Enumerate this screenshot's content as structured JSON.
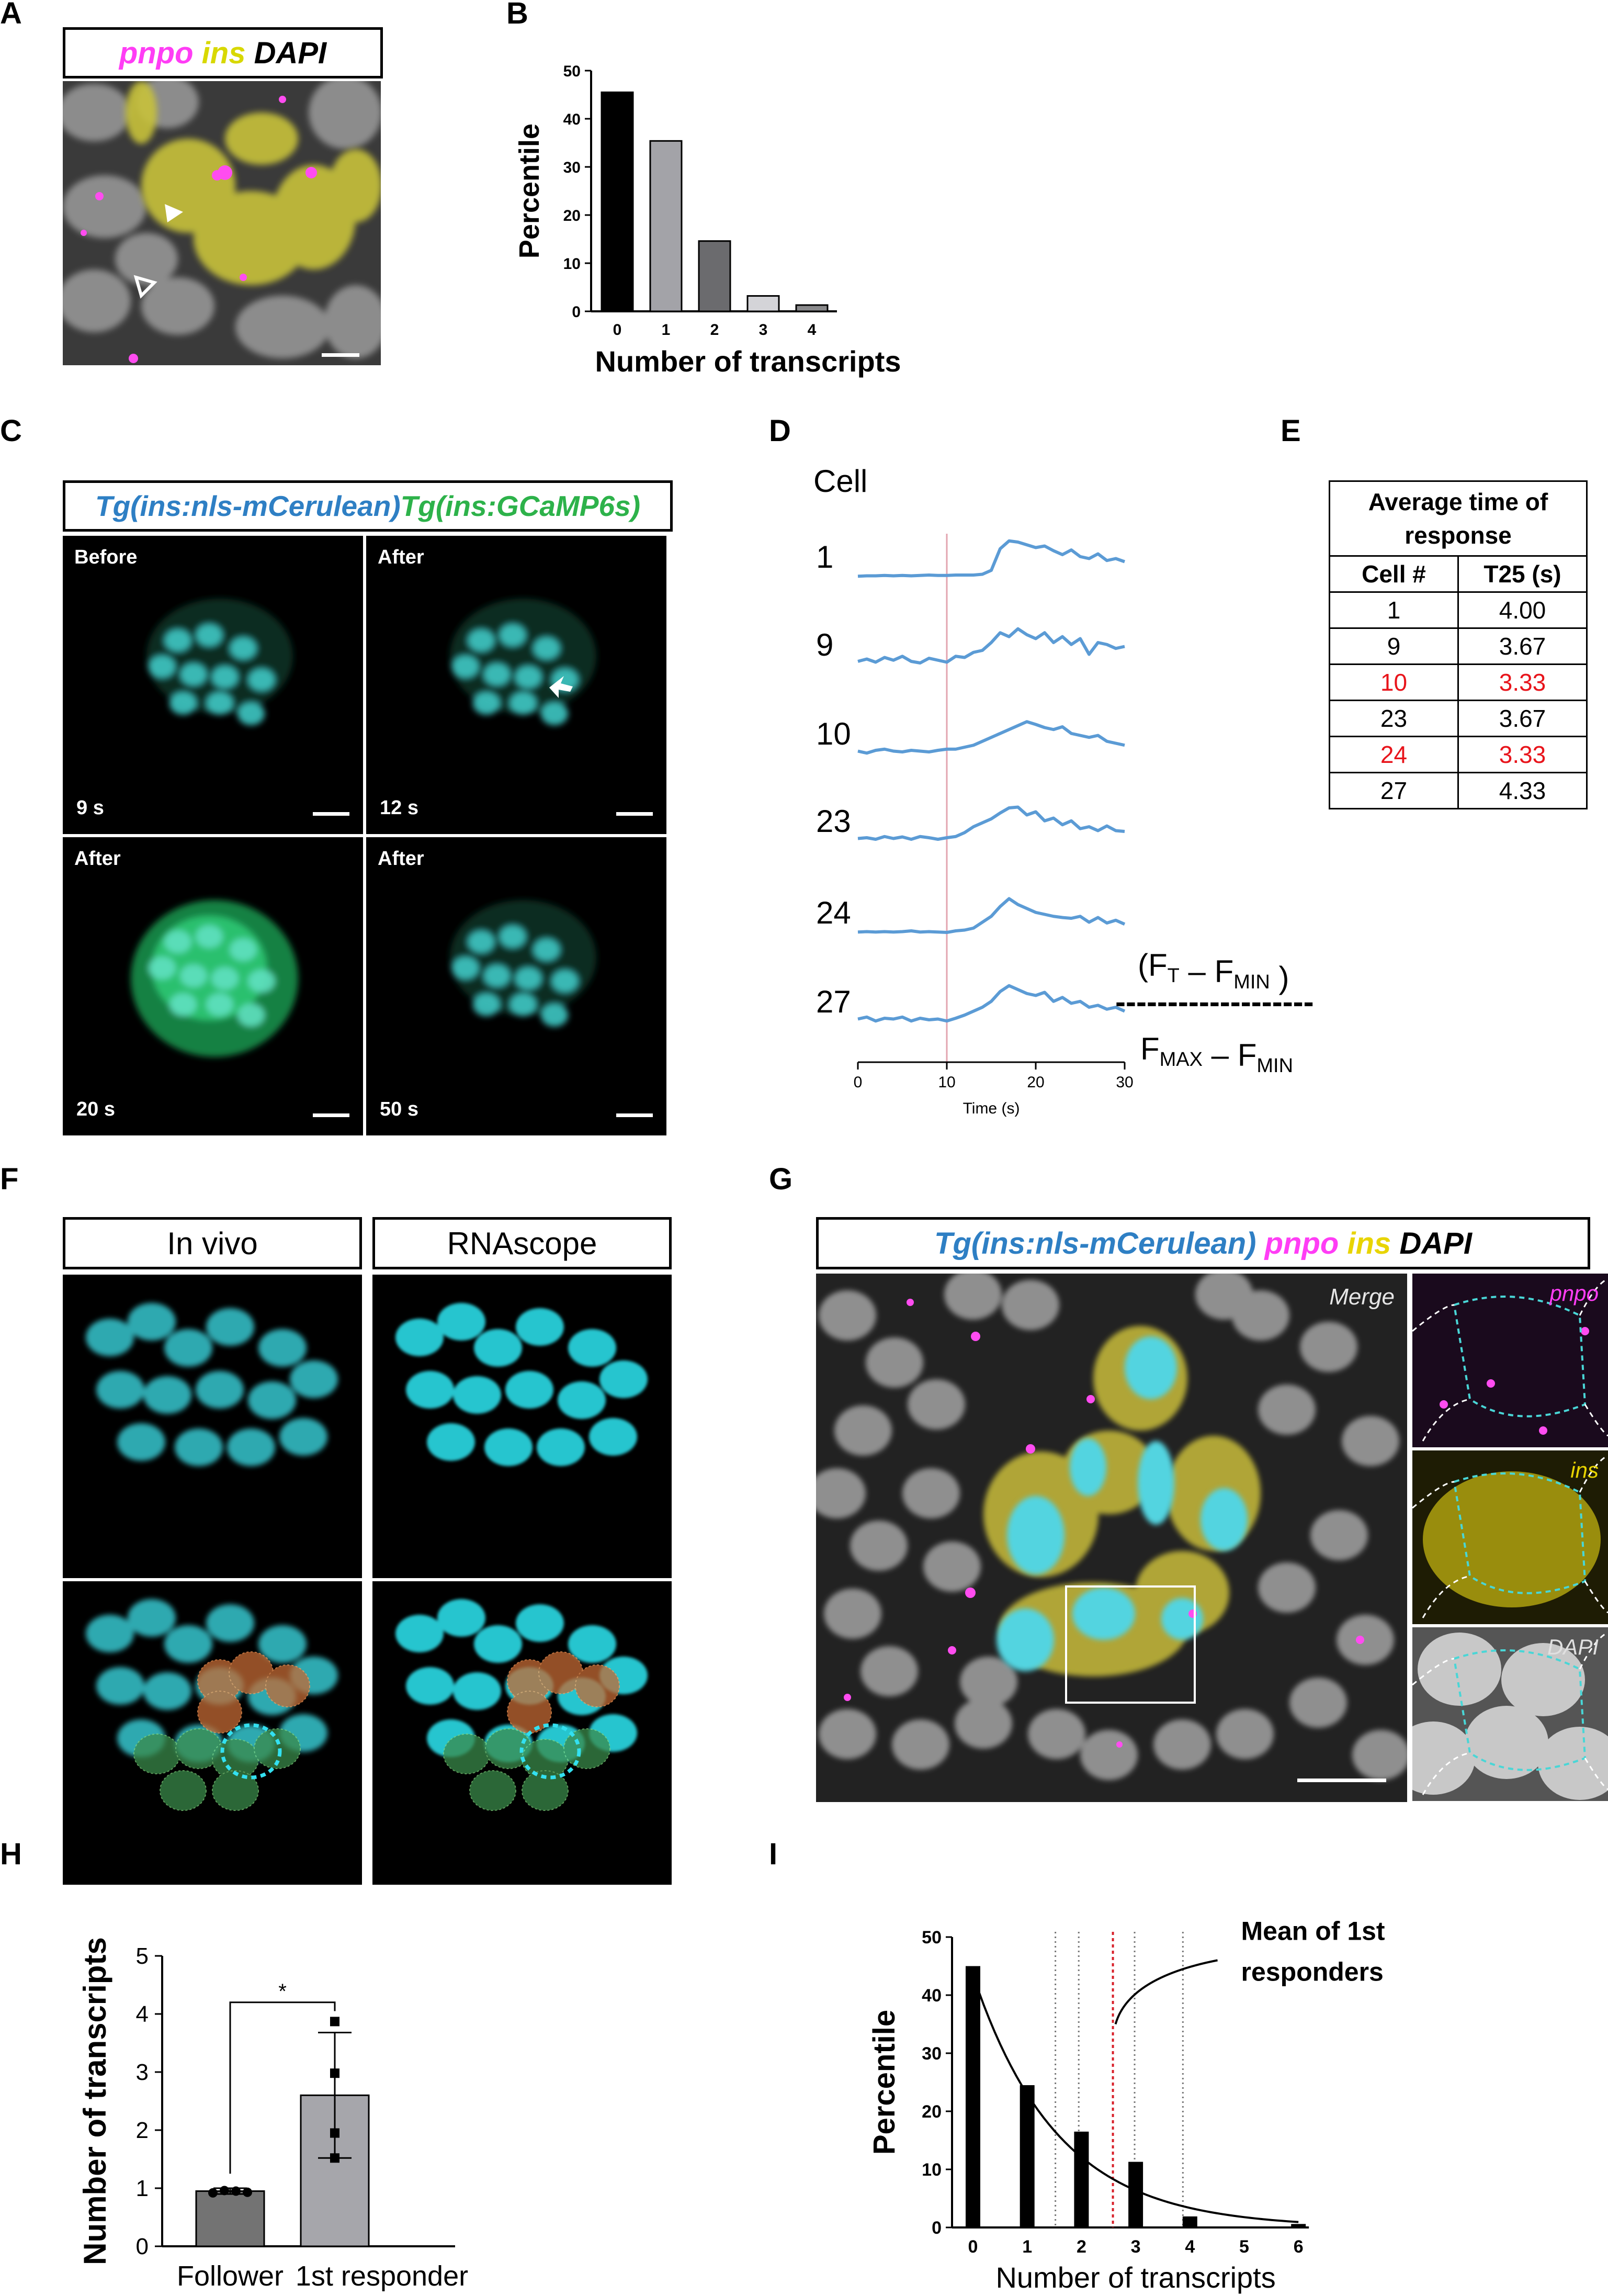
{
  "panels": {
    "A": "A",
    "B": "B",
    "C": "C",
    "D": "D",
    "E": "E",
    "F": "F",
    "G": "G",
    "H": "H",
    "I": "I"
  },
  "panelA": {
    "legend": [
      {
        "text": "pnpo",
        "color": "#ff3df5"
      },
      {
        "text": " ins",
        "color": "#d8d800"
      },
      {
        "text": " DAPI",
        "color": "#000000"
      }
    ]
  },
  "panelB": {
    "ylabel": "Percentile",
    "xlabel": "Number of transcripts",
    "yticks": [
      "0",
      "10",
      "20",
      "30",
      "40",
      "50"
    ],
    "chart_data": {
      "type": "bar",
      "categories": [
        "0",
        "1",
        "2",
        "3",
        "4"
      ],
      "values": [
        45.5,
        35.4,
        14.6,
        3.2,
        1.3
      ],
      "colors": [
        "#000000",
        "#a3a3a8",
        "#6b6b6e",
        "#d4d4d8",
        "#8a8a8c"
      ],
      "ylim": [
        0,
        50
      ]
    }
  },
  "panelC": {
    "legend_left": "Tg(ins:nls-mCerulean)",
    "legend_right": " Tg(ins:GCaMP6s)",
    "tiles": [
      {
        "tag": "Before",
        "time": "9 s"
      },
      {
        "tag": "After",
        "time": "12 s"
      },
      {
        "tag": "After",
        "time": "20 s"
      },
      {
        "tag": "After",
        "time": "50 s"
      }
    ]
  },
  "panelD": {
    "header": "Cell",
    "xlabel": "Time (s)",
    "xticks": [
      "0",
      "10",
      "20",
      "30"
    ],
    "formula": {
      "num_a": "(F",
      "num_a_sub": "T",
      "num_b": " – F",
      "num_b_sub": "MIN",
      "num_c": " )",
      "den_a": "F",
      "den_a_sub": "MAX",
      "den_b": " – F",
      "den_b_sub": "MIN",
      "dashes": "-------------------"
    },
    "chart_data": {
      "type": "line",
      "x": [
        0,
        1,
        2,
        3,
        4,
        5,
        6,
        7,
        8,
        9,
        10,
        11,
        12,
        13,
        14,
        15,
        16,
        17,
        18,
        19,
        20,
        21,
        22,
        23,
        24,
        25,
        26,
        27,
        28,
        29,
        30
      ],
      "stimulus_x": 10,
      "series": [
        {
          "name": "1",
          "values": [
            0.05,
            0.06,
            0.06,
            0.07,
            0.06,
            0.07,
            0.06,
            0.07,
            0.08,
            0.07,
            0.07,
            0.08,
            0.08,
            0.08,
            0.1,
            0.2,
            0.75,
            0.95,
            0.92,
            0.85,
            0.78,
            0.82,
            0.7,
            0.6,
            0.72,
            0.55,
            0.5,
            0.62,
            0.45,
            0.5,
            0.42
          ]
        },
        {
          "name": "9",
          "values": [
            0.12,
            0.18,
            0.1,
            0.22,
            0.15,
            0.25,
            0.12,
            0.08,
            0.2,
            0.15,
            0.1,
            0.25,
            0.22,
            0.35,
            0.4,
            0.6,
            0.85,
            0.75,
            0.95,
            0.8,
            0.7,
            0.85,
            0.6,
            0.75,
            0.55,
            0.7,
            0.3,
            0.6,
            0.55,
            0.45,
            0.5
          ]
        },
        {
          "name": "10",
          "values": [
            0.1,
            0.05,
            0.12,
            0.15,
            0.1,
            0.08,
            0.12,
            0.1,
            0.08,
            0.12,
            0.15,
            0.15,
            0.2,
            0.25,
            0.35,
            0.45,
            0.55,
            0.65,
            0.75,
            0.85,
            0.78,
            0.7,
            0.65,
            0.72,
            0.55,
            0.5,
            0.45,
            0.5,
            0.35,
            0.3,
            0.25
          ]
        },
        {
          "name": "23",
          "values": [
            0.1,
            0.12,
            0.08,
            0.15,
            0.1,
            0.14,
            0.08,
            0.15,
            0.12,
            0.08,
            0.12,
            0.15,
            0.25,
            0.4,
            0.5,
            0.6,
            0.75,
            0.88,
            0.9,
            0.7,
            0.78,
            0.55,
            0.62,
            0.45,
            0.55,
            0.35,
            0.4,
            0.3,
            0.42,
            0.3,
            0.28
          ]
        },
        {
          "name": "24",
          "values": [
            0.05,
            0.06,
            0.05,
            0.06,
            0.05,
            0.06,
            0.08,
            0.05,
            0.06,
            0.05,
            0.04,
            0.08,
            0.1,
            0.15,
            0.3,
            0.45,
            0.7,
            0.9,
            0.75,
            0.65,
            0.55,
            0.5,
            0.45,
            0.42,
            0.4,
            0.45,
            0.3,
            0.42,
            0.28,
            0.35,
            0.25
          ]
        },
        {
          "name": "27",
          "values": [
            0.1,
            0.15,
            0.05,
            0.12,
            0.1,
            0.15,
            0.05,
            0.12,
            0.08,
            0.1,
            0.05,
            0.12,
            0.2,
            0.3,
            0.4,
            0.55,
            0.8,
            0.95,
            0.85,
            0.75,
            0.7,
            0.78,
            0.55,
            0.65,
            0.5,
            0.55,
            0.4,
            0.45,
            0.35,
            0.4,
            0.3
          ]
        }
      ]
    }
  },
  "panelE": {
    "title_line1": "Average time of",
    "title_line2": "response",
    "col1": "Cell #",
    "col2": "T25 (s)",
    "rows": [
      {
        "cell": "1",
        "t25": "4.00",
        "highlight": false
      },
      {
        "cell": "9",
        "t25": "3.67",
        "highlight": false
      },
      {
        "cell": "10",
        "t25": "3.33",
        "highlight": true
      },
      {
        "cell": "23",
        "t25": "3.67",
        "highlight": false
      },
      {
        "cell": "24",
        "t25": "3.33",
        "highlight": true
      },
      {
        "cell": "27",
        "t25": "4.33",
        "highlight": false
      }
    ]
  },
  "panelF": {
    "left": "In vivo",
    "right": "RNAscope"
  },
  "panelG": {
    "legend": [
      {
        "text": "Tg(ins:nls-mCerulean)",
        "color": "#2e7fc4"
      },
      {
        "text": " pnpo",
        "color": "#ff3df5"
      },
      {
        "text": " ins",
        "color": "#e8d400"
      },
      {
        "text": " DAPI",
        "color": "#000000"
      }
    ],
    "merge": "Merge",
    "insets": [
      {
        "text": "pnpo",
        "color": "#ff3df5"
      },
      {
        "text": "ins",
        "color": "#e8d400"
      },
      {
        "text": "DAPI",
        "color": "#e0e0e0"
      }
    ]
  },
  "panelH": {
    "ylabel": "Number of transcripts",
    "yticks": [
      "0",
      "1",
      "2",
      "3",
      "4",
      "5"
    ],
    "significance": "*",
    "chart_data": {
      "type": "bar",
      "categories": [
        "Follower",
        "1st responder"
      ],
      "values": [
        0.95,
        2.6
      ],
      "errors": [
        0.05,
        1.08
      ],
      "colors": [
        "#737373",
        "#a6a6ab"
      ],
      "points": [
        [
          0.92,
          0.96,
          0.95,
          0.93
        ],
        [
          3.87,
          2.98,
          1.95,
          1.52
        ]
      ],
      "ylim": [
        0,
        5
      ]
    }
  },
  "panelI": {
    "ylabel": "Percentile",
    "xlabel": "Number of transcripts",
    "annotation_line1": "Mean of 1st",
    "annotation_line2": "responders",
    "xticks": [
      "0",
      "1",
      "2",
      "3",
      "4",
      "5",
      "6"
    ],
    "yticks": [
      "0",
      "10",
      "20",
      "30",
      "40",
      "50"
    ],
    "chart_data": {
      "type": "bar",
      "categories": [
        "0",
        "1",
        "2",
        "3",
        "4",
        "5",
        "6"
      ],
      "values": [
        45,
        24.5,
        16.5,
        11.3,
        1.9,
        0,
        0.6
      ],
      "fit": {
        "type": "exponential",
        "a": 43.5,
        "k": 0.64
      },
      "dotted_x": [
        1.52,
        1.95,
        2.98,
        3.87
      ],
      "mean_x": 2.58,
      "ylim": [
        0,
        50
      ]
    }
  }
}
